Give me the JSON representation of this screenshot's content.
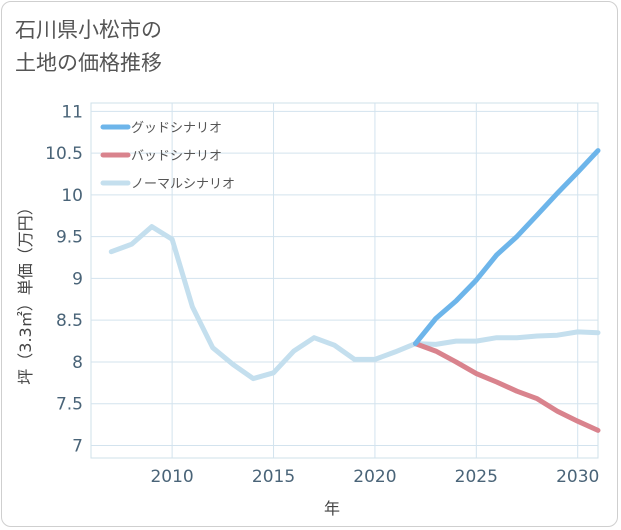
{
  "title_lines": [
    "石川県小松市の",
    "土地の価格推移"
  ],
  "chart_data": {
    "type": "line",
    "xlabel": "年",
    "ylabel": "坪（3.3㎡）単価（万円）",
    "xlim": [
      2006,
      2031
    ],
    "ylim": [
      6.85,
      11.1
    ],
    "xticks": [
      2010,
      2015,
      2020,
      2025,
      2030
    ],
    "xtick_labels": [
      "2010",
      "2015",
      "2020",
      "2025",
      "2030"
    ],
    "yticks": [
      7,
      7.5,
      8,
      8.5,
      9,
      9.5,
      10,
      10.5,
      11
    ],
    "ytick_labels": [
      "7",
      "7.5",
      "8",
      "8.5",
      "9",
      "9.5",
      "10",
      "10.5",
      "11"
    ],
    "grid": true,
    "legend_position": "top-left",
    "series": [
      {
        "name": "グッドシナリオ",
        "color": "#6db5ea",
        "x": [
          2022,
          2023,
          2024,
          2025,
          2026,
          2027,
          2028,
          2029,
          2030,
          2031
        ],
        "values": [
          8.22,
          8.52,
          8.73,
          8.98,
          9.28,
          9.5,
          9.76,
          10.02,
          10.27,
          10.53
        ]
      },
      {
        "name": "バッドシナリオ",
        "color": "#d9838d",
        "x": [
          2022,
          2023,
          2024,
          2025,
          2026,
          2027,
          2028,
          2029,
          2030,
          2031
        ],
        "values": [
          8.22,
          8.13,
          8.0,
          7.86,
          7.76,
          7.65,
          7.56,
          7.41,
          7.29,
          7.18
        ]
      },
      {
        "name": "ノーマルシナリオ",
        "color": "#c4dfee",
        "x": [
          2007,
          2008,
          2009,
          2010,
          2011,
          2012,
          2013,
          2014,
          2015,
          2016,
          2017,
          2018,
          2019,
          2020,
          2021,
          2022,
          2023,
          2024,
          2025,
          2026,
          2027,
          2028,
          2029,
          2030,
          2031
        ],
        "values": [
          9.32,
          9.41,
          9.62,
          9.47,
          8.66,
          8.17,
          7.97,
          7.8,
          7.87,
          8.13,
          8.29,
          8.2,
          8.03,
          8.03,
          8.12,
          8.22,
          8.21,
          8.25,
          8.25,
          8.29,
          8.29,
          8.31,
          8.32,
          8.36,
          8.35
        ]
      }
    ]
  }
}
